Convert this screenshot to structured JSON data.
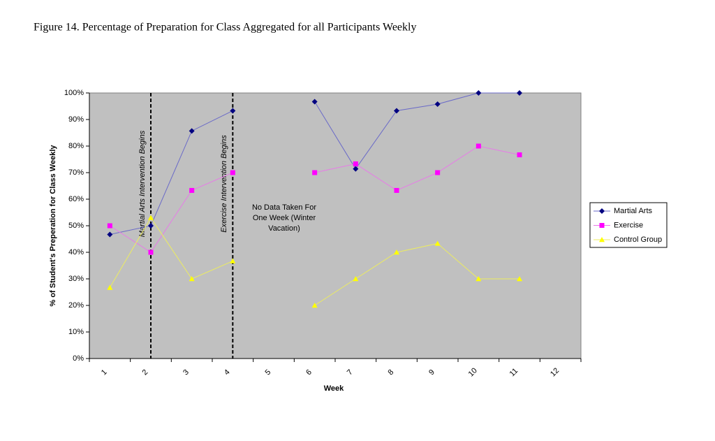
{
  "chart_data": {
    "type": "line",
    "title": "Figure 14. Percentage of Preparation for Class Aggregated for all Participants Weekly",
    "x_label": "Week",
    "y_label": "% of Student's Preperation for Class Weekly",
    "categories": [
      "1",
      "2",
      "3",
      "4",
      "5",
      "6",
      "7",
      "8",
      "9",
      "10",
      "11",
      "12"
    ],
    "series": [
      {
        "name": "Martial Arts",
        "color": "#000080",
        "line_color": "#6a6ac8",
        "marker": "diamond",
        "values": [
          46.7,
          50,
          85.7,
          93.3,
          null,
          96.7,
          71.4,
          93.3,
          95.8,
          100,
          100,
          null
        ]
      },
      {
        "name": "Exercise",
        "color": "#ff00ff",
        "line_color": "#e77be7",
        "marker": "square",
        "values": [
          50,
          40,
          63.3,
          70,
          null,
          70,
          73.3,
          63.3,
          70,
          80,
          76.7,
          null
        ]
      },
      {
        "name": "Control Group",
        "color": "#ffff00",
        "line_color": "#ecec60",
        "marker": "triangle",
        "values": [
          26.7,
          53,
          30,
          36.7,
          null,
          20,
          30,
          40,
          43.3,
          30,
          30,
          null
        ]
      }
    ],
    "ylim": [
      0,
      100
    ],
    "yticks": [
      {
        "value": 0,
        "label": "0%"
      },
      {
        "value": 10,
        "label": "10%"
      },
      {
        "value": 20,
        "label": "20%"
      },
      {
        "value": 30,
        "label": "30%"
      },
      {
        "value": 40,
        "label": "40%"
      },
      {
        "value": 50,
        "label": "50%"
      },
      {
        "value": 60,
        "label": "60%"
      },
      {
        "value": 70,
        "label": "70%"
      },
      {
        "value": 80,
        "label": "80%"
      },
      {
        "value": 90,
        "label": "90%"
      },
      {
        "value": 100,
        "label": "100%"
      }
    ],
    "plot_background": "#c0c0c0",
    "legend": "right",
    "markers_lines": [
      {
        "x": "2",
        "text": "Martial Arts Intervention Begins"
      },
      {
        "x": "4",
        "text": "Exercise Intervention Begins"
      }
    ],
    "note": {
      "x": "5",
      "lines": [
        "No Data Taken For",
        "One Week (Winter",
        "Vacation)"
      ]
    }
  }
}
